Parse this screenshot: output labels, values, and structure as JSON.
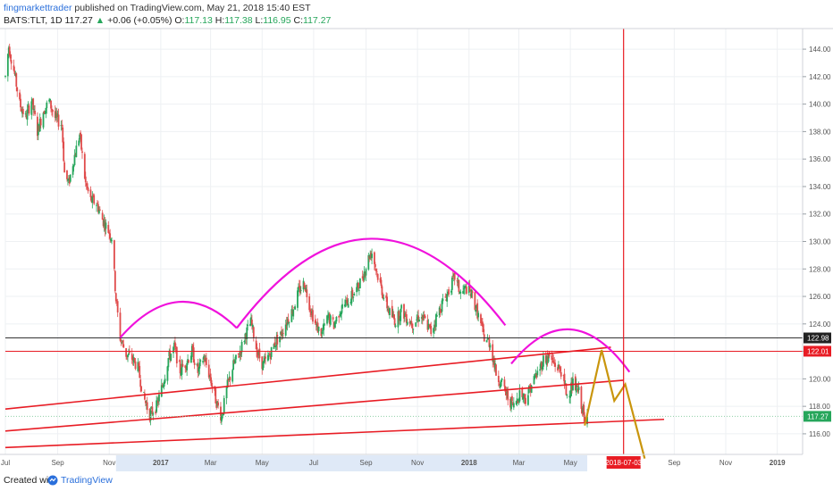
{
  "header": {
    "author": "fingmarkettrader",
    "published_text": "published on TradingView.com, May 21, 2018 15:40 EST",
    "symbol": "BATS:TLT, 1D",
    "last": "117.27",
    "change": "+0.06 (+0.05%)",
    "o_label": "O:",
    "o_val": "117.13",
    "h_label": "H:",
    "h_val": "117.38",
    "l_label": "L:",
    "l_val": "116.95",
    "c_label": "C:",
    "c_val": "117.27"
  },
  "footer": {
    "created_text": "Created with",
    "brand": "TradingView"
  },
  "colors": {
    "up": "#26a65b",
    "down": "#e04c4c",
    "arc": "#f012dc",
    "trend": "#e81c24",
    "projection": "#c9950c",
    "time_line": "#e81c24",
    "price_line": "#333333"
  },
  "chart_data": {
    "type": "candlestick",
    "symbol": "BATS:TLT",
    "interval": "1D",
    "y_range": [
      114.5,
      145.5
    ],
    "y_ticks": [
      116,
      118,
      120,
      122,
      124,
      126,
      128,
      130,
      132,
      134,
      136,
      138,
      140,
      142,
      144
    ],
    "y_tick_labels": [
      "116.00",
      "118.00",
      "120.00",
      "122.00",
      "124.00",
      "126.00",
      "128.00",
      "130.00",
      "132.00",
      "134.00",
      "136.00",
      "138.00",
      "140.00",
      "142.00",
      "144.00"
    ],
    "x_range": [
      "2016-07-01",
      "2019-01-31"
    ],
    "x_ticks": [
      {
        "date": "2016-07-01",
        "label": "Jul"
      },
      {
        "date": "2016-09-01",
        "label": "Sep"
      },
      {
        "date": "2016-11-01",
        "label": "Nov"
      },
      {
        "date": "2017-01-01",
        "label": "2017"
      },
      {
        "date": "2017-03-01",
        "label": "Mar"
      },
      {
        "date": "2017-05-01",
        "label": "May"
      },
      {
        "date": "2017-07-01",
        "label": "Jul"
      },
      {
        "date": "2017-09-01",
        "label": "Sep"
      },
      {
        "date": "2017-11-01",
        "label": "Nov"
      },
      {
        "date": "2018-01-01",
        "label": "2018"
      },
      {
        "date": "2018-03-01",
        "label": "Mar"
      },
      {
        "date": "2018-05-01",
        "label": "May"
      },
      {
        "date": "2018-09-01",
        "label": "Sep"
      },
      {
        "date": "2018-11-01",
        "label": "Nov"
      },
      {
        "date": "2019-01-01",
        "label": "2019"
      }
    ],
    "price_path": [
      [
        "2016-07-01",
        142.0
      ],
      [
        "2016-07-05",
        144.2
      ],
      [
        "2016-07-11",
        142.5
      ],
      [
        "2016-07-18",
        140.0
      ],
      [
        "2016-07-25",
        139.0
      ],
      [
        "2016-08-01",
        140.3
      ],
      [
        "2016-08-08",
        138.0
      ],
      [
        "2016-08-15",
        139.5
      ],
      [
        "2016-08-22",
        140.2
      ],
      [
        "2016-08-29",
        139.0
      ],
      [
        "2016-09-06",
        138.5
      ],
      [
        "2016-09-09",
        135.0
      ],
      [
        "2016-09-14",
        134.2
      ],
      [
        "2016-09-20",
        136.0
      ],
      [
        "2016-09-27",
        137.8
      ],
      [
        "2016-10-04",
        134.2
      ],
      [
        "2016-10-10",
        133.0
      ],
      [
        "2016-10-17",
        132.8
      ],
      [
        "2016-10-24",
        131.6
      ],
      [
        "2016-10-31",
        130.8
      ],
      [
        "2016-11-04",
        130.3
      ],
      [
        "2016-11-09",
        125.8
      ],
      [
        "2016-11-14",
        123.0
      ],
      [
        "2016-11-21",
        121.8
      ],
      [
        "2016-11-28",
        121.5
      ],
      [
        "2016-12-05",
        120.8
      ],
      [
        "2016-12-12",
        118.6
      ],
      [
        "2016-12-19",
        117.4
      ],
      [
        "2016-12-27",
        118.0
      ],
      [
        "2017-01-03",
        119.5
      ],
      [
        "2017-01-10",
        121.5
      ],
      [
        "2017-01-17",
        122.3
      ],
      [
        "2017-01-24",
        120.6
      ],
      [
        "2017-01-31",
        121.2
      ],
      [
        "2017-02-07",
        122.0
      ],
      [
        "2017-02-14",
        120.5
      ],
      [
        "2017-02-21",
        121.6
      ],
      [
        "2017-02-28",
        120.2
      ],
      [
        "2017-03-07",
        118.5
      ],
      [
        "2017-03-14",
        117.2
      ],
      [
        "2017-03-21",
        119.5
      ],
      [
        "2017-03-28",
        121.0
      ],
      [
        "2017-04-04",
        121.8
      ],
      [
        "2017-04-11",
        123.2
      ],
      [
        "2017-04-18",
        124.1
      ],
      [
        "2017-04-25",
        122.0
      ],
      [
        "2017-05-02",
        121.0
      ],
      [
        "2017-05-09",
        121.6
      ],
      [
        "2017-05-16",
        122.6
      ],
      [
        "2017-05-23",
        123.2
      ],
      [
        "2017-05-30",
        124.2
      ],
      [
        "2017-06-06",
        125.0
      ],
      [
        "2017-06-13",
        126.3
      ],
      [
        "2017-06-20",
        127.0
      ],
      [
        "2017-06-27",
        125.2
      ],
      [
        "2017-07-04",
        123.8
      ],
      [
        "2017-07-11",
        123.3
      ],
      [
        "2017-07-18",
        124.5
      ],
      [
        "2017-07-25",
        123.9
      ],
      [
        "2017-08-01",
        125.0
      ],
      [
        "2017-08-08",
        125.5
      ],
      [
        "2017-08-15",
        126.0
      ],
      [
        "2017-08-22",
        126.6
      ],
      [
        "2017-08-29",
        127.6
      ],
      [
        "2017-09-05",
        129.0
      ],
      [
        "2017-09-08",
        129.2
      ],
      [
        "2017-09-15",
        127.5
      ],
      [
        "2017-09-22",
        126.0
      ],
      [
        "2017-09-29",
        124.8
      ],
      [
        "2017-10-06",
        124.2
      ],
      [
        "2017-10-13",
        125.0
      ],
      [
        "2017-10-20",
        124.4
      ],
      [
        "2017-10-27",
        124.0
      ],
      [
        "2017-11-03",
        124.6
      ],
      [
        "2017-11-10",
        124.2
      ],
      [
        "2017-11-17",
        123.4
      ],
      [
        "2017-11-24",
        124.6
      ],
      [
        "2017-12-01",
        125.6
      ],
      [
        "2017-12-08",
        126.4
      ],
      [
        "2017-12-15",
        127.4
      ],
      [
        "2017-12-22",
        126.2
      ],
      [
        "2017-12-29",
        126.6
      ],
      [
        "2018-01-05",
        126.0
      ],
      [
        "2018-01-12",
        124.6
      ],
      [
        "2018-01-19",
        123.0
      ],
      [
        "2018-01-26",
        122.6
      ],
      [
        "2018-02-02",
        120.4
      ],
      [
        "2018-02-09",
        119.6
      ],
      [
        "2018-02-16",
        118.6
      ],
      [
        "2018-02-23",
        118.0
      ],
      [
        "2018-03-02",
        119.0
      ],
      [
        "2018-03-09",
        118.6
      ],
      [
        "2018-03-16",
        119.6
      ],
      [
        "2018-03-23",
        120.4
      ],
      [
        "2018-03-30",
        121.4
      ],
      [
        "2018-04-06",
        121.6
      ],
      [
        "2018-04-13",
        121.0
      ],
      [
        "2018-04-20",
        120.6
      ],
      [
        "2018-04-27",
        118.8
      ],
      [
        "2018-05-04",
        119.6
      ],
      [
        "2018-05-11",
        119.0
      ],
      [
        "2018-05-16",
        117.6
      ],
      [
        "2018-05-18",
        116.6
      ],
      [
        "2018-05-21",
        117.27
      ]
    ],
    "trend_lines": [
      {
        "from": [
          "2016-07-01",
          117.8
        ],
        "to": [
          "2018-06-18",
          122.3
        ]
      },
      {
        "from": [
          "2016-07-01",
          116.2
        ],
        "to": [
          "2018-07-03",
          119.9
        ]
      },
      {
        "from": [
          "2016-07-01",
          115.0
        ],
        "to": [
          "2018-08-20",
          117.05
        ]
      }
    ],
    "arcs": [
      {
        "from": [
          "2016-11-14",
          123.0
        ],
        "to": [
          "2017-04-01",
          123.7
        ],
        "peak": 125.6
      },
      {
        "from": [
          "2017-04-01",
          123.7
        ],
        "to": [
          "2018-02-13",
          123.9
        ],
        "peak": 130.2
      },
      {
        "from": [
          "2018-02-20",
          121.1
        ],
        "to": [
          "2018-07-10",
          120.5
        ],
        "peak": 123.6
      }
    ],
    "projection_path": [
      [
        "2018-05-18",
        116.6
      ],
      [
        "2018-06-07",
        122.1
      ],
      [
        "2018-06-22",
        118.4
      ],
      [
        "2018-07-05",
        119.6
      ],
      [
        "2018-07-28",
        114.2
      ]
    ],
    "vertical_marker": {
      "date": "2018-07-03",
      "label": "2018-07-03"
    },
    "horizontal_levels": [
      {
        "value": 122.98,
        "label": "122.98",
        "kind": "black"
      },
      {
        "value": 122.01,
        "label": "122.01",
        "kind": "red"
      },
      {
        "value": 117.27,
        "label": "117.27",
        "kind": "last"
      }
    ]
  }
}
